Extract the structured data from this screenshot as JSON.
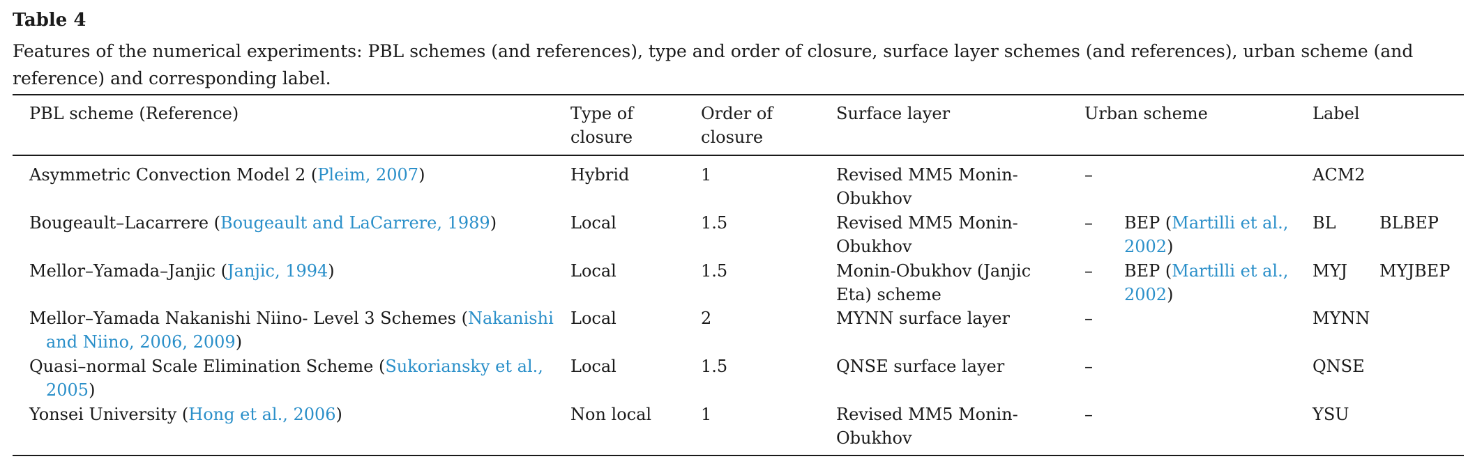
{
  "table": {
    "title": "Table 4",
    "caption": "Features of the numerical experiments: PBL schemes (and references), type and order of closure, surface layer schemes (and references), urban scheme (and reference) and corresponding label.",
    "headers": {
      "pbl": "PBL scheme (Reference)",
      "type": "Type of closure",
      "order": "Order of closure",
      "surface": "Surface layer",
      "urban": "Urban scheme",
      "label": "Label"
    },
    "rows": [
      {
        "pbl_name": "Asymmetric Convection Model 2 (",
        "pbl_ref": "Pleim, 2007",
        "pbl_close": ")",
        "type": "Hybrid",
        "order": "1",
        "surface": "Revised MM5 Monin-Obukhov",
        "urban_dash": "–",
        "label": "ACM2"
      },
      {
        "pbl_name": "Bougeault–Lacarrere (",
        "pbl_ref": "Bougeault and LaCarrere, 1989",
        "pbl_close": ")",
        "type": "Local",
        "order": "1.5",
        "surface": "Revised MM5 Monin-Obukhov",
        "urban_dash": "–",
        "urban_bep": "BEP (",
        "urban_ref": "Martilli et al., 2002",
        "urban_close": ")",
        "label": "BL",
        "label2": "BLBEP"
      },
      {
        "pbl_name": "Mellor–Yamada–Janjic (",
        "pbl_ref": "Janjic, 1994",
        "pbl_close": ")",
        "type": "Local",
        "order": "1.5",
        "surface": "Monin-Obukhov (Janjic Eta) scheme",
        "urban_dash": "–",
        "urban_bep": "BEP (",
        "urban_ref": "Martilli et al., 2002",
        "urban_close": ")",
        "label": "MYJ",
        "label2": "MYJBEP"
      },
      {
        "pbl_name": "Mellor–Yamada Nakanishi Niino- Level 3 Schemes (",
        "pbl_ref": "Nakanishi and Niino, 2006, 2009",
        "pbl_close": ")",
        "type": "Local",
        "order": "2",
        "surface": "MYNN surface layer",
        "urban_dash": "–",
        "label": "MYNN"
      },
      {
        "pbl_name": "Quasi–normal Scale Elimination Scheme (",
        "pbl_ref": "Sukoriansky et al., 2005",
        "pbl_close": ")",
        "type": "Local",
        "order": "1.5",
        "surface": "QNSE surface layer",
        "urban_dash": "–",
        "label": "QNSE"
      },
      {
        "pbl_name": "Yonsei University (",
        "pbl_ref": "Hong et al., 2006",
        "pbl_close": ")",
        "type": "Non local",
        "order": "1",
        "surface": "Revised MM5 Monin-Obukhov",
        "urban_dash": "–",
        "label": "YSU"
      }
    ]
  }
}
